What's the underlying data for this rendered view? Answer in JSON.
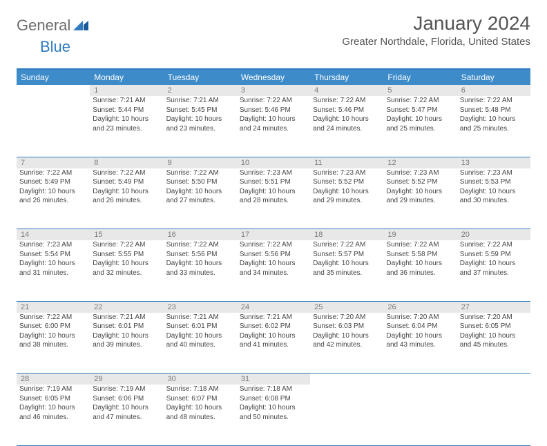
{
  "logo": {
    "text1": "General",
    "text2": "Blue"
  },
  "title": "January 2024",
  "location": "Greater Northdale, Florida, United States",
  "colors": {
    "header_bg": "#3d8bc9",
    "border": "#2f7abf",
    "daynum_bg": "#e8e8e8",
    "text": "#444444"
  },
  "day_labels": [
    "Sunday",
    "Monday",
    "Tuesday",
    "Wednesday",
    "Thursday",
    "Friday",
    "Saturday"
  ],
  "weeks": [
    [
      null,
      {
        "n": "1",
        "sr": "7:21 AM",
        "ss": "5:44 PM",
        "dl": "10 hours and 23 minutes."
      },
      {
        "n": "2",
        "sr": "7:21 AM",
        "ss": "5:45 PM",
        "dl": "10 hours and 23 minutes."
      },
      {
        "n": "3",
        "sr": "7:22 AM",
        "ss": "5:46 PM",
        "dl": "10 hours and 24 minutes."
      },
      {
        "n": "4",
        "sr": "7:22 AM",
        "ss": "5:46 PM",
        "dl": "10 hours and 24 minutes."
      },
      {
        "n": "5",
        "sr": "7:22 AM",
        "ss": "5:47 PM",
        "dl": "10 hours and 25 minutes."
      },
      {
        "n": "6",
        "sr": "7:22 AM",
        "ss": "5:48 PM",
        "dl": "10 hours and 25 minutes."
      }
    ],
    [
      {
        "n": "7",
        "sr": "7:22 AM",
        "ss": "5:49 PM",
        "dl": "10 hours and 26 minutes."
      },
      {
        "n": "8",
        "sr": "7:22 AM",
        "ss": "5:49 PM",
        "dl": "10 hours and 26 minutes."
      },
      {
        "n": "9",
        "sr": "7:22 AM",
        "ss": "5:50 PM",
        "dl": "10 hours and 27 minutes."
      },
      {
        "n": "10",
        "sr": "7:23 AM",
        "ss": "5:51 PM",
        "dl": "10 hours and 28 minutes."
      },
      {
        "n": "11",
        "sr": "7:23 AM",
        "ss": "5:52 PM",
        "dl": "10 hours and 29 minutes."
      },
      {
        "n": "12",
        "sr": "7:23 AM",
        "ss": "5:52 PM",
        "dl": "10 hours and 29 minutes."
      },
      {
        "n": "13",
        "sr": "7:23 AM",
        "ss": "5:53 PM",
        "dl": "10 hours and 30 minutes."
      }
    ],
    [
      {
        "n": "14",
        "sr": "7:23 AM",
        "ss": "5:54 PM",
        "dl": "10 hours and 31 minutes."
      },
      {
        "n": "15",
        "sr": "7:22 AM",
        "ss": "5:55 PM",
        "dl": "10 hours and 32 minutes."
      },
      {
        "n": "16",
        "sr": "7:22 AM",
        "ss": "5:56 PM",
        "dl": "10 hours and 33 minutes."
      },
      {
        "n": "17",
        "sr": "7:22 AM",
        "ss": "5:56 PM",
        "dl": "10 hours and 34 minutes."
      },
      {
        "n": "18",
        "sr": "7:22 AM",
        "ss": "5:57 PM",
        "dl": "10 hours and 35 minutes."
      },
      {
        "n": "19",
        "sr": "7:22 AM",
        "ss": "5:58 PM",
        "dl": "10 hours and 36 minutes."
      },
      {
        "n": "20",
        "sr": "7:22 AM",
        "ss": "5:59 PM",
        "dl": "10 hours and 37 minutes."
      }
    ],
    [
      {
        "n": "21",
        "sr": "7:22 AM",
        "ss": "6:00 PM",
        "dl": "10 hours and 38 minutes."
      },
      {
        "n": "22",
        "sr": "7:21 AM",
        "ss": "6:01 PM",
        "dl": "10 hours and 39 minutes."
      },
      {
        "n": "23",
        "sr": "7:21 AM",
        "ss": "6:01 PM",
        "dl": "10 hours and 40 minutes."
      },
      {
        "n": "24",
        "sr": "7:21 AM",
        "ss": "6:02 PM",
        "dl": "10 hours and 41 minutes."
      },
      {
        "n": "25",
        "sr": "7:20 AM",
        "ss": "6:03 PM",
        "dl": "10 hours and 42 minutes."
      },
      {
        "n": "26",
        "sr": "7:20 AM",
        "ss": "6:04 PM",
        "dl": "10 hours and 43 minutes."
      },
      {
        "n": "27",
        "sr": "7:20 AM",
        "ss": "6:05 PM",
        "dl": "10 hours and 45 minutes."
      }
    ],
    [
      {
        "n": "28",
        "sr": "7:19 AM",
        "ss": "6:05 PM",
        "dl": "10 hours and 46 minutes."
      },
      {
        "n": "29",
        "sr": "7:19 AM",
        "ss": "6:06 PM",
        "dl": "10 hours and 47 minutes."
      },
      {
        "n": "30",
        "sr": "7:18 AM",
        "ss": "6:07 PM",
        "dl": "10 hours and 48 minutes."
      },
      {
        "n": "31",
        "sr": "7:18 AM",
        "ss": "6:08 PM",
        "dl": "10 hours and 50 minutes."
      },
      null,
      null,
      null
    ]
  ],
  "labels": {
    "sunrise": "Sunrise: ",
    "sunset": "Sunset: ",
    "daylight": "Daylight: "
  }
}
